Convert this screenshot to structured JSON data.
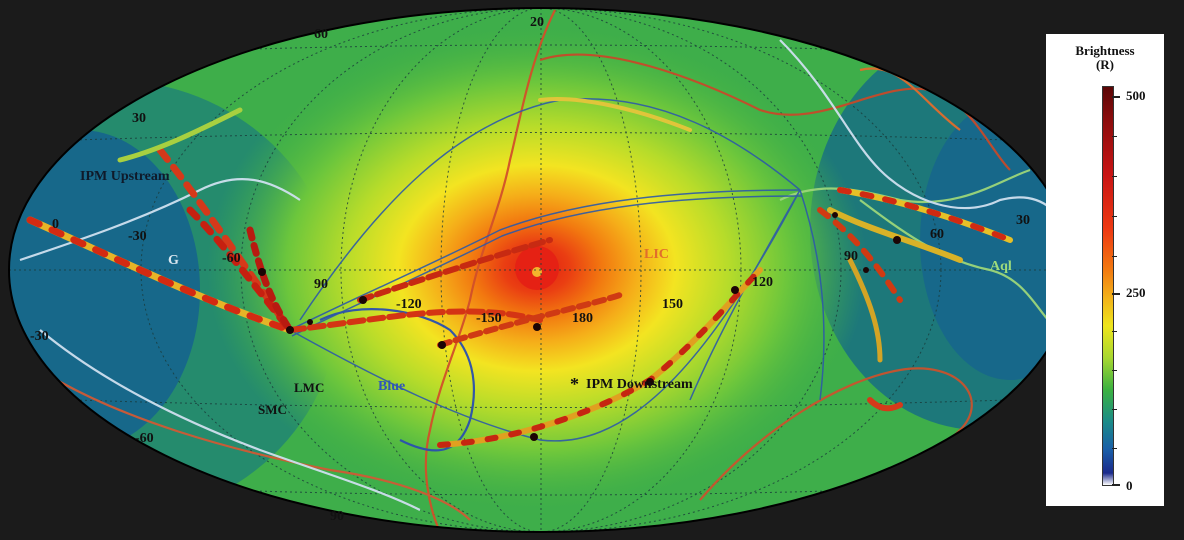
{
  "colors": {
    "background": "#1b1b1b",
    "ocean_low": "#17688a",
    "mid_green": "#4dbd46",
    "hot_core": "#e01d12",
    "lic_cloud": "#e2661f",
    "blue_cloud": "#2f57b8",
    "g_cloud": "#d9e6ef",
    "aql_cloud": "#9edc7c",
    "grid": "#1a3a3a"
  },
  "grid_labels": {
    "lat_top": "60",
    "lat_top2": "20",
    "lat_30": "30",
    "lat_0": "0",
    "lat_m30": "-30",
    "lat_m60": "-60",
    "lon_m30": "-30",
    "lon_m60": "-60",
    "lon_90": "90",
    "lon_m120": "-120",
    "lon_m150": "-150",
    "lon_180": "180",
    "lon_150": "150",
    "lon_120": "120",
    "lon_90r": "90",
    "lon_60": "60",
    "lon_30": "30",
    "bottom": "90"
  },
  "region_labels": {
    "ipm_upstream": "IPM Upstream",
    "ipm_downstream": "IPM Downstream",
    "g": "G",
    "lic": "LIC",
    "aql": "Aql",
    "blue": "Blue",
    "lmc": "LMC",
    "smc": "SMC",
    "downstream_marker": "*"
  },
  "colorbar": {
    "title_line1": "Brightness",
    "title_line2": "(R)",
    "tick_high": "500",
    "tick_mid": "250",
    "tick_low": "0"
  }
}
